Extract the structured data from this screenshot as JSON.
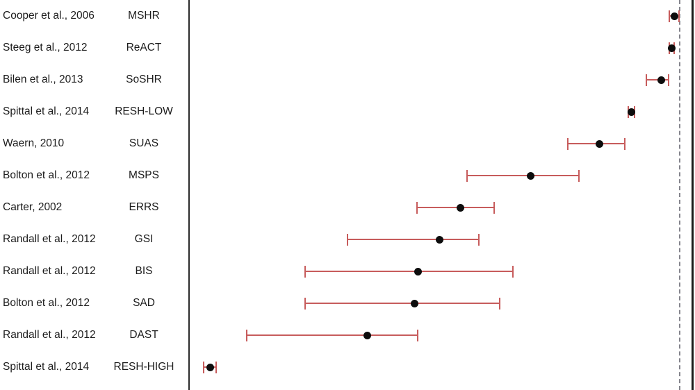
{
  "chart_data": {
    "type": "scatter",
    "subtype": "forest-plot",
    "title": "",
    "xlabel": "",
    "ylabel": "",
    "x_axis_note": "No tick labels visible; values estimated as fraction of span between left solid axis (0) and right dashed reference line (1.0)",
    "xlim": [
      0,
      1
    ],
    "reference_dashed_line_value": 1.0,
    "legend": null,
    "grid": false,
    "rows": [
      {
        "study": "Cooper et al., 2006",
        "scale": "MSHR",
        "value": 0.99,
        "ci_low": 0.979,
        "ci_high": 0.999
      },
      {
        "study": "Steeg et al., 2012",
        "scale": "ReACT",
        "value": 0.984,
        "ci_low": 0.979,
        "ci_high": 0.988
      },
      {
        "study": "Bilen et al., 2013",
        "scale": "SoSHR",
        "value": 0.962,
        "ci_low": 0.932,
        "ci_high": 0.977
      },
      {
        "study": "Spittal et al., 2014",
        "scale": "RESH-LOW",
        "value": 0.901,
        "ci_low": 0.896,
        "ci_high": 0.908
      },
      {
        "study": "Waern, 2010",
        "scale": "SUAS",
        "value": 0.837,
        "ci_low": 0.772,
        "ci_high": 0.888
      },
      {
        "study": "Bolton et al., 2012",
        "scale": "MSPS",
        "value": 0.697,
        "ci_low": 0.567,
        "ci_high": 0.795
      },
      {
        "study": "Carter, 2002",
        "scale": "ERRS",
        "value": 0.554,
        "ci_low": 0.466,
        "ci_high": 0.623
      },
      {
        "study": "Randall et al., 2012",
        "scale": "GSI",
        "value": 0.511,
        "ci_low": 0.324,
        "ci_high": 0.591
      },
      {
        "study": "Randall et al., 2012",
        "scale": "BIS",
        "value": 0.467,
        "ci_low": 0.237,
        "ci_high": 0.661
      },
      {
        "study": "Bolton et al., 2012",
        "scale": "SAD",
        "value": 0.46,
        "ci_low": 0.237,
        "ci_high": 0.633
      },
      {
        "study": "Randall et al., 2012",
        "scale": "DAST",
        "value": 0.364,
        "ci_low": 0.119,
        "ci_high": 0.467
      },
      {
        "study": "Spittal et al., 2014",
        "scale": "RESH-HIGH",
        "value": 0.044,
        "ci_low": 0.031,
        "ci_high": 0.057
      }
    ]
  },
  "colors": {
    "error_bar": "#c75c5c",
    "point": "#0d0d0d",
    "axis_line": "#2b2b2b",
    "dashed_reference": "#85858d",
    "right_border": "#1a1a1a",
    "background": "#ffffff",
    "text": "#1c1c1c"
  }
}
